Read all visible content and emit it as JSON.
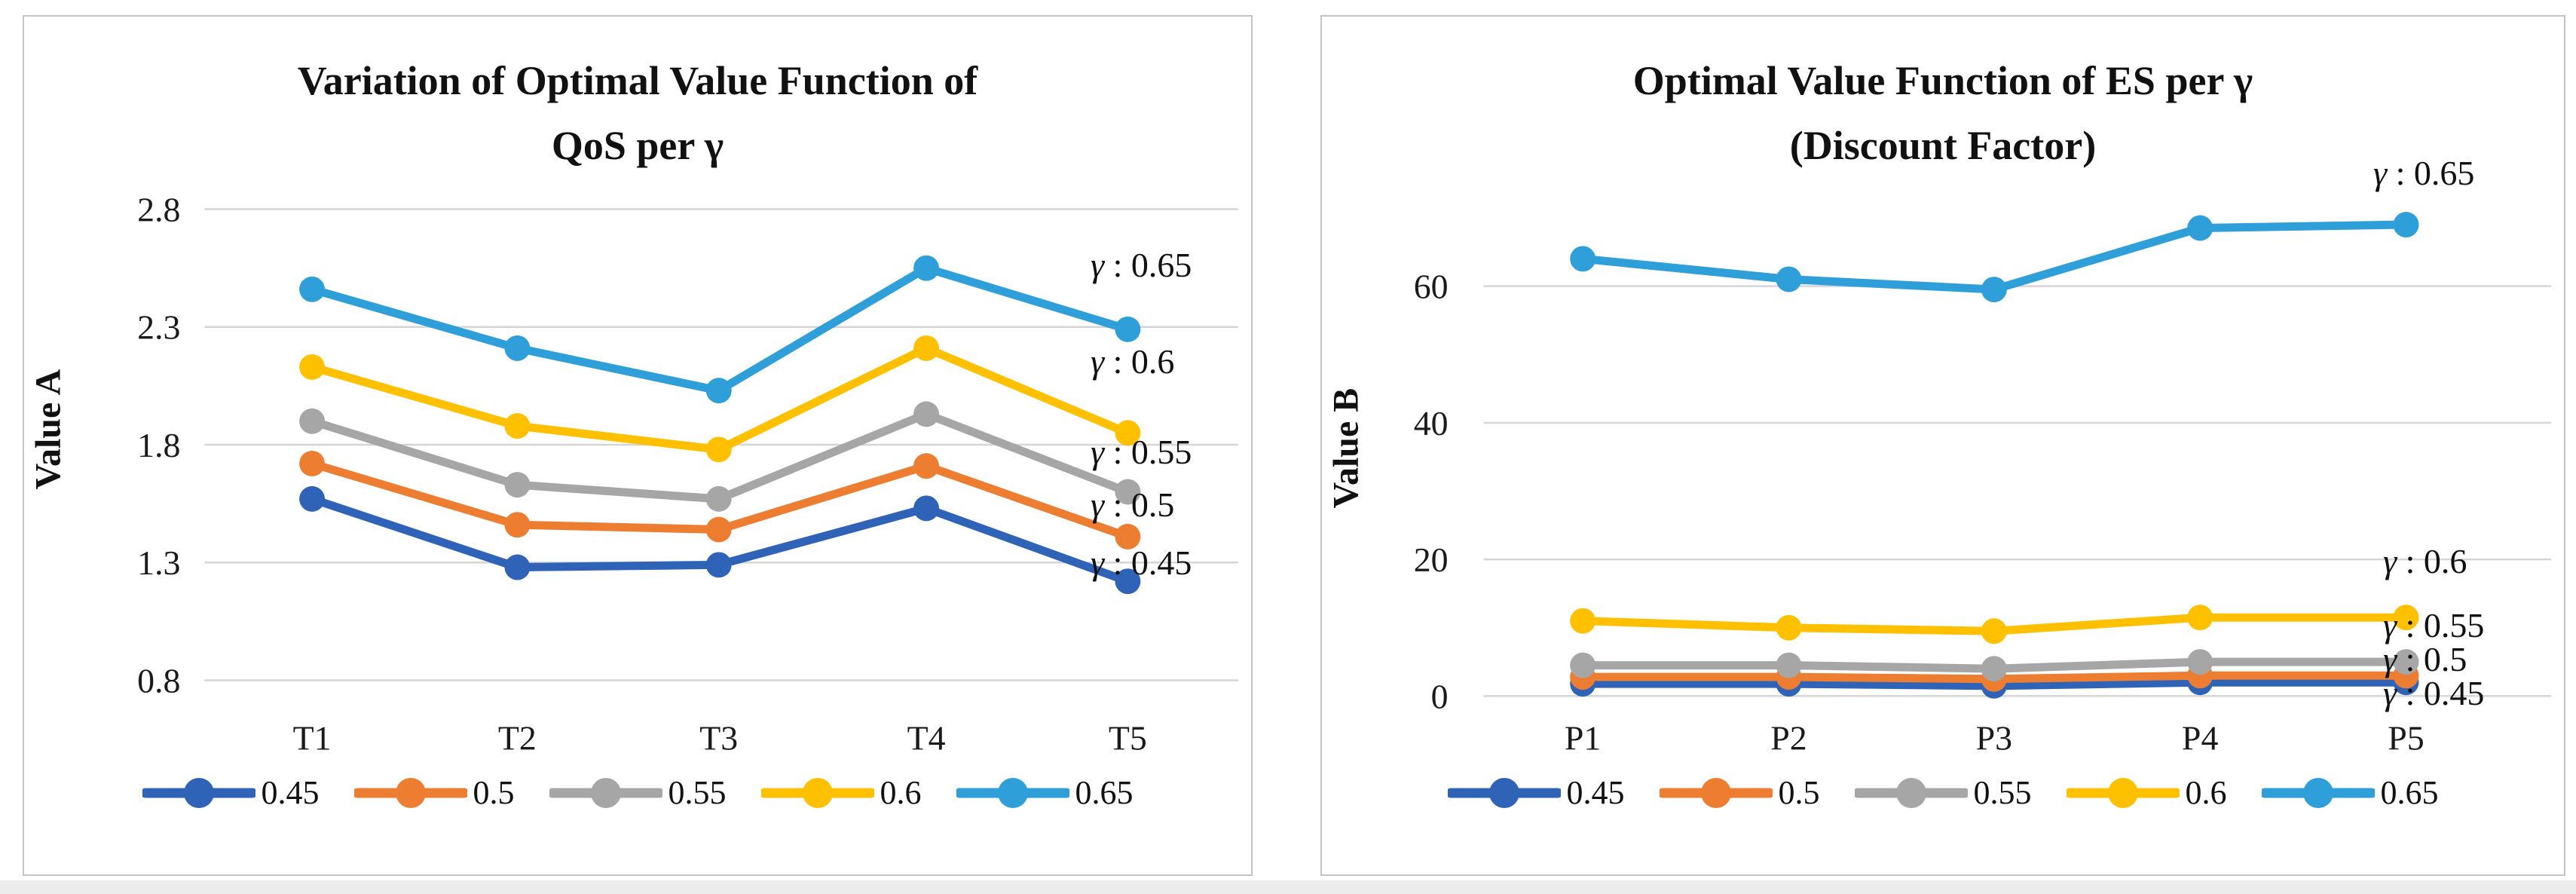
{
  "chart_data": [
    {
      "type": "line",
      "title": "Variation of Optimal Value Function of QoS per γ",
      "title_lines": [
        "Variation of Optimal Value Function of",
        "QoS per γ"
      ],
      "xlabel": "",
      "ylabel": "Value A",
      "categories": [
        "T1",
        "T2",
        "T3",
        "T4",
        "T5"
      ],
      "yticks": [
        2.8,
        2.3,
        1.8,
        1.3,
        0.8
      ],
      "ylim": [
        0.8,
        2.8
      ],
      "grid": true,
      "legend_position": "bottom",
      "marker": "circle",
      "gridline_color": "#d6d6d6",
      "series": [
        {
          "name": "0.45",
          "color": "#2e63b8",
          "values": [
            1.57,
            1.28,
            1.29,
            1.53,
            1.22
          ],
          "annotation": "γ : 0.45"
        },
        {
          "name": "0.5",
          "color": "#ed7d31",
          "values": [
            1.72,
            1.46,
            1.44,
            1.71,
            1.41
          ],
          "annotation": "γ : 0.5"
        },
        {
          "name": "0.55",
          "color": "#a6a6a6",
          "values": [
            1.9,
            1.63,
            1.57,
            1.93,
            1.6
          ],
          "annotation": "γ : 0.55"
        },
        {
          "name": "0.6",
          "color": "#ffc000",
          "values": [
            2.13,
            1.88,
            1.78,
            2.21,
            1.85
          ],
          "annotation": "γ : 0.6"
        },
        {
          "name": "0.65",
          "color": "#2e9fd9",
          "values": [
            2.46,
            2.21,
            2.03,
            2.55,
            2.29
          ],
          "annotation": "γ : 0.65"
        }
      ]
    },
    {
      "type": "line",
      "title": "Optimal Value Function of ES per γ (Discount Factor)",
      "title_lines": [
        "Optimal Value Function of ES per γ",
        "(Discount Factor)"
      ],
      "xlabel": "",
      "ylabel": "Value B",
      "categories": [
        "P1",
        "P2",
        "P3",
        "P4",
        "P5"
      ],
      "yticks": [
        60,
        40,
        20,
        0
      ],
      "ylim": [
        0,
        75
      ],
      "grid": true,
      "legend_position": "bottom",
      "marker": "circle",
      "gridline_color": "#d6d6d6",
      "series": [
        {
          "name": "0.45",
          "color": "#2e63b8",
          "values": [
            1.8,
            1.8,
            1.5,
            2,
            2
          ],
          "annotation": "γ : 0.45"
        },
        {
          "name": "0.5",
          "color": "#ed7d31",
          "values": [
            2.8,
            2.8,
            2.5,
            3,
            3
          ],
          "annotation": "γ : 0.5"
        },
        {
          "name": "0.55",
          "color": "#a6a6a6",
          "values": [
            4.5,
            4.5,
            4,
            5,
            5
          ],
          "annotation": "γ : 0.55"
        },
        {
          "name": "0.6",
          "color": "#ffc000",
          "values": [
            11,
            10,
            9.5,
            11.5,
            11.5
          ],
          "annotation": "γ : 0.6"
        },
        {
          "name": "0.65",
          "color": "#2e9fd9",
          "values": [
            64,
            61,
            59.5,
            68.5,
            69
          ],
          "annotation": "γ : 0.65"
        }
      ]
    }
  ]
}
